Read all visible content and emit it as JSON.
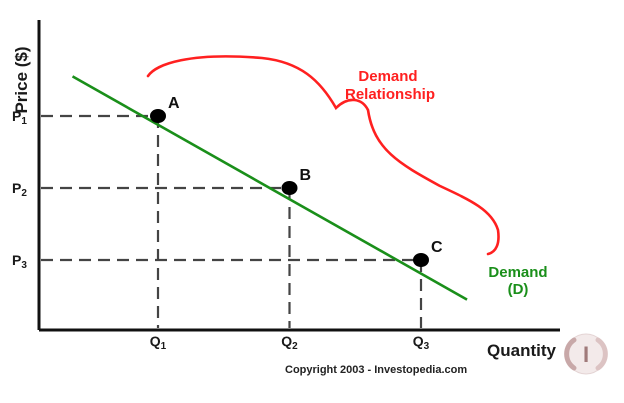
{
  "chart_data": {
    "type": "line",
    "title": "",
    "xlabel": "Quantity",
    "ylabel": "Price ($)",
    "x_ticks": [
      {
        "base": "Q",
        "sub": "1"
      },
      {
        "base": "Q",
        "sub": "2"
      },
      {
        "base": "Q",
        "sub": "3"
      }
    ],
    "y_ticks": [
      {
        "base": "P",
        "sub": "1"
      },
      {
        "base": "P",
        "sub": "2"
      },
      {
        "base": "P",
        "sub": "3"
      }
    ],
    "series": [
      {
        "name": "Demand (D)",
        "legend_line1": "Demand",
        "legend_line2": "(D)",
        "color": "#1a8f1a",
        "line": [
          [
            0.35,
            3.55
          ],
          [
            3.35,
            0.45
          ]
        ],
        "points": [
          {
            "label": "A",
            "x": 1,
            "y": 3
          },
          {
            "label": "B",
            "x": 2,
            "y": 2
          },
          {
            "label": "C",
            "x": 3,
            "y": 1
          }
        ]
      }
    ],
    "annotation": {
      "line1": "Demand",
      "line2": "Relationship",
      "color": "#ff2020"
    },
    "guides": {
      "style": "dashed",
      "color": "#444444"
    },
    "grid": false,
    "legend": "inline-right"
  },
  "footer": {
    "copyright": "Copyright 2003 - Investopedia.com",
    "logo_letter": "I"
  }
}
